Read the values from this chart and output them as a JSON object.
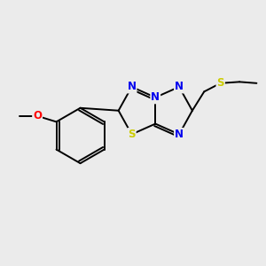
{
  "background_color": "#ebebeb",
  "bond_color": "#000000",
  "atom_colors": {
    "N": "#0000ee",
    "S": "#cccc00",
    "O": "#ff0000",
    "C": "#000000"
  },
  "figsize": [
    3.0,
    3.0
  ],
  "dpi": 100,
  "lw": 1.4
}
